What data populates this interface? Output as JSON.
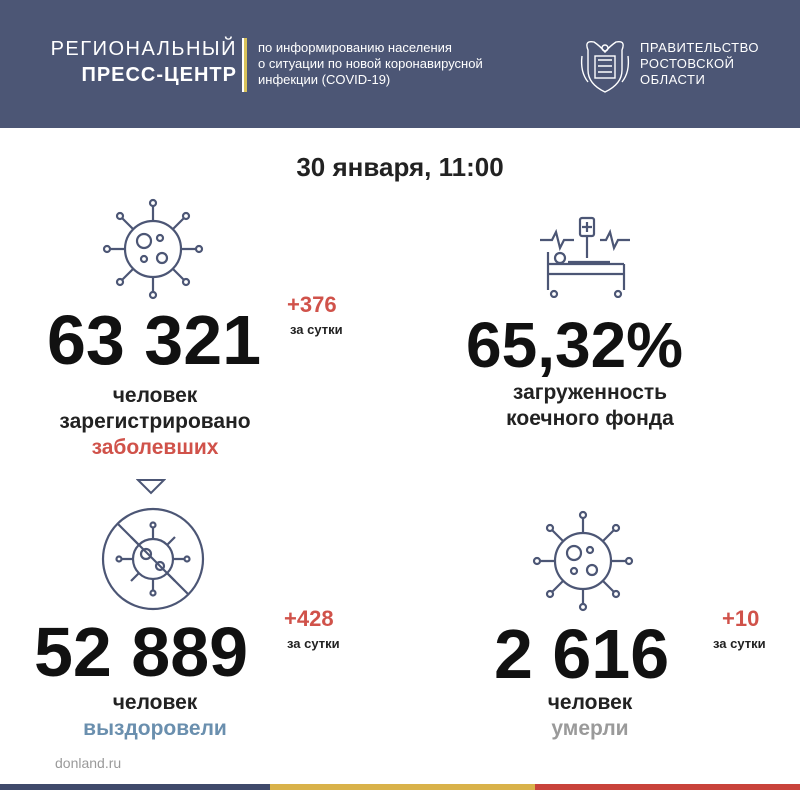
{
  "header": {
    "brand_line1": "РЕГИОНАЛЬНЫЙ",
    "brand_line2": "ПРЕСС-ЦЕНТР",
    "info_lines": [
      "по информированию населения",
      "о ситуации по новой коронавирусной",
      "инфекции (COVID-19)"
    ],
    "gov_lines": [
      "ПРАВИТЕЛЬСТВО",
      "РОСТОВСКОЙ",
      "ОБЛАСТИ"
    ]
  },
  "date": "30 января, 11:00",
  "infected": {
    "value": "63 321",
    "delta": "+376",
    "delta_label": "за сутки",
    "line1": "человек",
    "line2": "зарегистрировано",
    "line3": "заболевших"
  },
  "beds": {
    "value": "65,32%",
    "line1": "загруженность",
    "line2": "коечного фонда"
  },
  "recovered": {
    "value": "52 889",
    "delta": "+428",
    "delta_label": "за сутки",
    "line1": "человек",
    "line2": "выздоровели"
  },
  "deaths": {
    "value": "2 616",
    "delta": "+10",
    "delta_label": "за сутки",
    "line1": "человек",
    "line2": "умерли"
  },
  "footer": {
    "site": "donland.ru"
  },
  "colors": {
    "header_bg": "#4c5675",
    "accent_red": "#d0524a",
    "accent_blue": "#6a8fae",
    "icon_gray": "#4c5675",
    "muted": "#9a9a9a"
  },
  "icons": [
    "virus-icon",
    "hospital-bed-icon",
    "virus-crossed-icon",
    "down-arrow-icon",
    "government-emblem-icon"
  ]
}
